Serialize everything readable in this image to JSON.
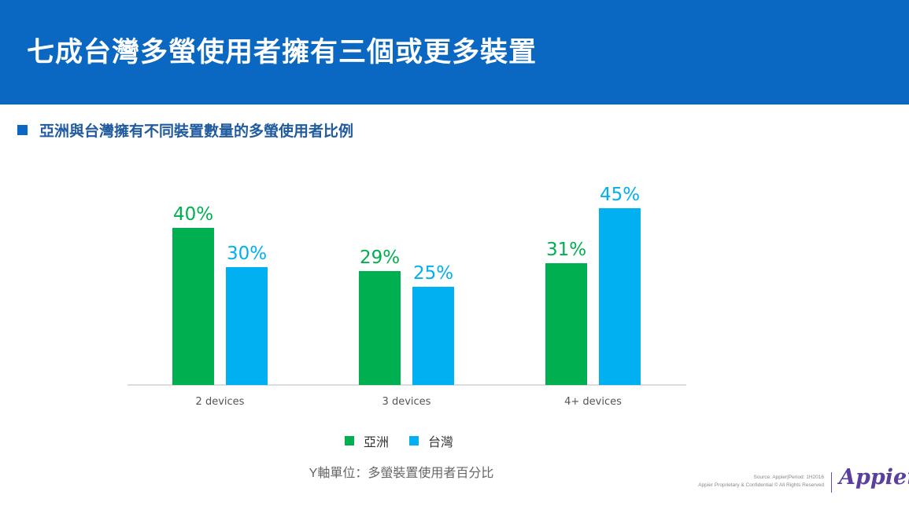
{
  "header": {
    "title": "七成台灣多螢使用者擁有三個或更多裝置"
  },
  "subtitle": "亞洲與台灣擁有不同裝置數量的多螢使用者比例",
  "colors": {
    "header_bg": "#0a67c2",
    "asia": "#00b050",
    "taiwan": "#00b0f0"
  },
  "chart_data": {
    "type": "bar",
    "title": "",
    "categories": [
      "2 devices",
      "3 devices",
      "4+ devices"
    ],
    "series": [
      {
        "name": "亞洲",
        "values": [
          40,
          29,
          31
        ],
        "labels": [
          "40%",
          "29%",
          "31%"
        ]
      },
      {
        "name": "台灣",
        "values": [
          30,
          25,
          45
        ],
        "labels": [
          "30%",
          "25%",
          "45%"
        ]
      }
    ],
    "ylim": [
      0,
      50
    ],
    "grid": false,
    "legend_position": "bottom-center",
    "ylabel": "Y軸單位：多螢裝置使用者百分比"
  },
  "footer": {
    "source": "Source: Appier|Period: 1H2016",
    "rights": "Appier Proprietary & Confidential © All Rights Reserved",
    "logo": "Appier"
  }
}
